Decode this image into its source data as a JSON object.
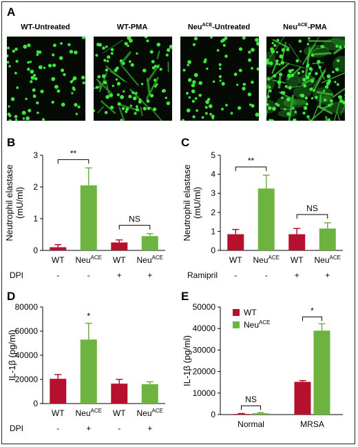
{
  "panels": {
    "a": "A",
    "b": "B",
    "c": "C",
    "d": "D",
    "e": "E"
  },
  "micrographs": [
    {
      "title_main": "WT-Untreated",
      "title_sup": "",
      "title_tail": "",
      "density": "sparse"
    },
    {
      "title_main": "WT-PMA",
      "title_sup": "",
      "title_tail": "",
      "density": "medium"
    },
    {
      "title_main": "Neu",
      "title_sup": "ACE",
      "title_tail": "-Untreated",
      "density": "sparse"
    },
    {
      "title_main": "Neu",
      "title_sup": "ACE",
      "title_tail": "-PMA",
      "density": "dense"
    }
  ],
  "chart_data": [
    {
      "id": "B",
      "type": "bar",
      "ylabel_line1": "Neutrophil elastase",
      "ylabel_line2": "(mU/ml)",
      "ylim": [
        0,
        3
      ],
      "yticks": [
        "0",
        "1",
        "2",
        "3"
      ],
      "categories": [
        {
          "main": "WT",
          "sup": ""
        },
        {
          "main": "Neu",
          "sup": "ACE"
        },
        {
          "main": "WT",
          "sup": ""
        },
        {
          "main": "Neu",
          "sup": "ACE"
        }
      ],
      "values": [
        0.1,
        2.05,
        0.25,
        0.45
      ],
      "errors": [
        0.08,
        0.55,
        0.08,
        0.08
      ],
      "colors": [
        "#b5112f",
        "#6db33f",
        "#b5112f",
        "#6db33f"
      ],
      "treatment_label": "DPI",
      "treatment_signs": [
        "-",
        "-",
        "+",
        "+"
      ],
      "significance": [
        {
          "from": 0,
          "to": 1,
          "label": "**"
        },
        {
          "from": 2,
          "to": 3,
          "label": "NS"
        }
      ]
    },
    {
      "id": "C",
      "type": "bar",
      "ylabel_line1": "Neutrophil elastase",
      "ylabel_line2": "(mU/ml)",
      "ylim": [
        0,
        5
      ],
      "yticks": [
        "0",
        "1",
        "2",
        "3",
        "4",
        "5"
      ],
      "categories": [
        {
          "main": "WT",
          "sup": ""
        },
        {
          "main": "Neu",
          "sup": "ACE"
        },
        {
          "main": "WT",
          "sup": ""
        },
        {
          "main": "Neu",
          "sup": "ACE"
        }
      ],
      "values": [
        0.85,
        3.25,
        0.85,
        1.15
      ],
      "errors": [
        0.25,
        0.7,
        0.3,
        0.3
      ],
      "colors": [
        "#b5112f",
        "#6db33f",
        "#b5112f",
        "#6db33f"
      ],
      "treatment_label": "Ramipril",
      "treatment_signs": [
        "-",
        "-",
        "+",
        "+"
      ],
      "significance": [
        {
          "from": 0,
          "to": 1,
          "label": "**"
        },
        {
          "from": 2,
          "to": 3,
          "label": "NS"
        }
      ]
    },
    {
      "id": "D",
      "type": "bar",
      "ylabel_line1": "IL-1β (pg/ml)",
      "ylabel_line2": "",
      "ylim": [
        0,
        80000
      ],
      "yticks": [
        "0",
        "20000",
        "40000",
        "60000",
        "80000"
      ],
      "categories": [
        {
          "main": "WT",
          "sup": ""
        },
        {
          "main": "Neu",
          "sup": "ACE"
        },
        {
          "main": "WT",
          "sup": ""
        },
        {
          "main": "Neu",
          "sup": "ACE"
        }
      ],
      "values": [
        20500,
        53000,
        16500,
        16000
      ],
      "errors": [
        3500,
        13500,
        3500,
        2000
      ],
      "colors": [
        "#b5112f",
        "#6db33f",
        "#b5112f",
        "#6db33f"
      ],
      "treatment_label": "DPI",
      "treatment_signs": [
        "-",
        "+",
        "-",
        "+"
      ],
      "significance": [
        {
          "over": 1,
          "label": "*"
        }
      ]
    },
    {
      "id": "E",
      "type": "bar",
      "ylabel_line1": "IL-1β (pg/ml)",
      "ylabel_line2": "",
      "ylim": [
        0,
        50000
      ],
      "yticks": [
        "0",
        "10000",
        "20000",
        "30000",
        "40000",
        "50000"
      ],
      "groups": [
        "Normal",
        "MRSA"
      ],
      "series": [
        {
          "name": "WT",
          "name_sup": "",
          "color": "#b5112f",
          "values": [
            300,
            15200
          ],
          "errors": [
            200,
            600
          ]
        },
        {
          "name": "Neu",
          "name_sup": "ACE",
          "color": "#6db33f",
          "values": [
            600,
            39000
          ],
          "errors": [
            300,
            3200
          ]
        }
      ],
      "legend_position": "top-left",
      "significance": [
        {
          "group": 0,
          "label": "NS"
        },
        {
          "group": 1,
          "label": "*"
        }
      ]
    }
  ]
}
